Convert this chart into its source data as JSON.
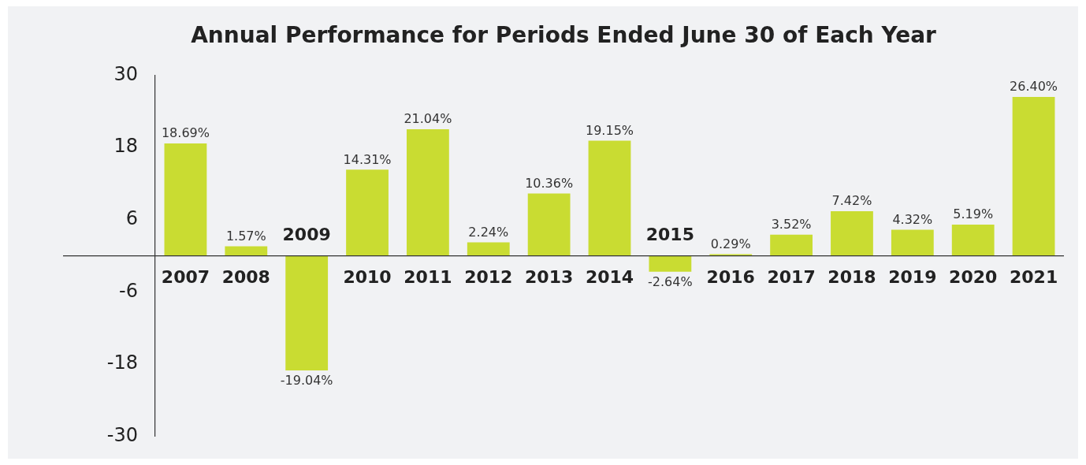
{
  "chart_data": {
    "type": "bar",
    "title": "Annual Performance for Periods Ended June 30 of Each Year",
    "categories": [
      "2007",
      "2008",
      "2009",
      "2010",
      "2011",
      "2012",
      "2013",
      "2014",
      "2015",
      "2016",
      "2017",
      "2018",
      "2019",
      "2020",
      "2021"
    ],
    "values": [
      18.69,
      1.57,
      -19.04,
      14.31,
      21.04,
      2.24,
      10.36,
      19.15,
      -2.64,
      0.29,
      3.52,
      7.42,
      4.32,
      5.19,
      26.4
    ],
    "value_labels": [
      "18.69%",
      "1.57%",
      "-19.04%",
      "14.31%",
      "21.04%",
      "2.24%",
      "10.36%",
      "19.15%",
      "-2.64%",
      "0.29%",
      "3.52%",
      "7.42%",
      "4.32%",
      "5.19%",
      "26.40%"
    ],
    "color": "#c9dc32",
    "ylim": [
      -30,
      30
    ],
    "yticks": [
      30,
      18,
      6,
      -6,
      -18,
      -30
    ],
    "grid": false,
    "legend": false
  }
}
